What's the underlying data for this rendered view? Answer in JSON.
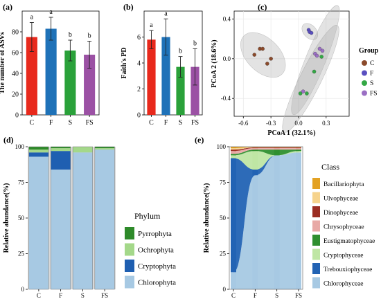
{
  "panels": {
    "a": {
      "label": "(a)"
    },
    "b": {
      "label": "(b)"
    },
    "c": {
      "label": "(c)"
    },
    "d": {
      "label": "(d)"
    },
    "e": {
      "label": "(e)"
    }
  },
  "chart_data": [
    {
      "id": "a",
      "type": "bar",
      "ylabel": "The number of ASVs",
      "categories": [
        "C",
        "F",
        "S",
        "FS"
      ],
      "values": [
        75,
        83,
        62,
        58
      ],
      "errors": [
        14,
        11,
        10,
        13
      ],
      "significance": [
        "a",
        "a",
        "b",
        "b"
      ],
      "colors": [
        "#e8291c",
        "#1f72b8",
        "#2aa13a",
        "#9b51a4"
      ],
      "ylim": [
        0,
        100
      ],
      "yticks": [
        0,
        20,
        40,
        60,
        80
      ]
    },
    {
      "id": "b",
      "type": "bar",
      "ylabel": "Faith's PD",
      "categories": [
        "C",
        "F",
        "S",
        "FS"
      ],
      "values": [
        5.8,
        6.0,
        3.7,
        3.7
      ],
      "errors": [
        0.7,
        1.4,
        0.8,
        1.4
      ],
      "significance": [
        "a",
        "a",
        "b",
        "b"
      ],
      "colors": [
        "#e8291c",
        "#1f72b8",
        "#2aa13a",
        "#9b51a4"
      ],
      "ylim": [
        0,
        8
      ],
      "yticks": [
        0,
        2,
        4,
        6
      ]
    },
    {
      "id": "c",
      "type": "scatter",
      "xlabel": "PCoA 1 (32.1%)",
      "ylabel": "PCoA 2 (18.6%)",
      "xlim": [
        -0.7,
        0.55
      ],
      "ylim": [
        -0.58,
        0.48
      ],
      "xticks": [
        -0.6,
        -0.3,
        0.0,
        0.3
      ],
      "xtick_labels": [
        "-0.6",
        "-0.3",
        "0.0",
        "0.3"
      ],
      "yticks": [
        -0.4,
        0.0,
        0.4
      ],
      "ytick_labels": [
        "-0.4",
        "0.0",
        "0.4"
      ],
      "legend_title": "Group",
      "series": [
        {
          "name": "C",
          "color": "#8b4a2b",
          "points": [
            [
              -0.48,
              0.04
            ],
            [
              -0.42,
              0.1
            ],
            [
              -0.39,
              0.1
            ],
            [
              -0.34,
              -0.05
            ],
            [
              -0.3,
              0.0
            ]
          ]
        },
        {
          "name": "F",
          "color": "#5a4fc0",
          "points": [
            [
              0.11,
              0.29
            ],
            [
              0.12,
              0.27
            ],
            [
              0.14,
              0.26
            ]
          ]
        },
        {
          "name": "S",
          "color": "#33a845",
          "points": [
            [
              0.02,
              -0.35
            ],
            [
              0.09,
              -0.35
            ],
            [
              0.17,
              -0.13
            ],
            [
              0.25,
              0.02
            ]
          ]
        },
        {
          "name": "FS",
          "color": "#9b6fc4",
          "points": [
            [
              0.05,
              -0.33
            ],
            [
              0.18,
              0.05
            ],
            [
              0.23,
              0.1
            ],
            [
              0.26,
              0.08
            ],
            [
              0.2,
              0.03
            ]
          ]
        }
      ]
    },
    {
      "id": "d",
      "type": "bar",
      "stacked": true,
      "ylabel": "Relative abundance(%)",
      "categories": [
        "C",
        "F",
        "S",
        "FS"
      ],
      "ylim": [
        0,
        100
      ],
      "yticks": [
        0,
        25,
        50,
        75,
        100
      ],
      "legend_title": "Phylum",
      "series": [
        {
          "name": "Chlorophyta",
          "color": "#a7c9e3",
          "values": [
            93,
            84,
            96,
            98
          ]
        },
        {
          "name": "Cryptophyta",
          "color": "#1f5fb1",
          "values": [
            3,
            13,
            0,
            0
          ]
        },
        {
          "name": "Ochrophyta",
          "color": "#a4d88a",
          "values": [
            2,
            2,
            4,
            1
          ]
        },
        {
          "name": "Pyrrophyta",
          "color": "#2e8a2a",
          "values": [
            2,
            1,
            0,
            1
          ]
        }
      ]
    },
    {
      "id": "e",
      "type": "area",
      "stacked": true,
      "ylabel": "Relative abundance(%)",
      "categories": [
        "C",
        "F",
        "S",
        "FS"
      ],
      "ylim": [
        0,
        100
      ],
      "yticks": [
        0,
        25,
        50,
        75,
        100
      ],
      "legend_title": "Class",
      "series": [
        {
          "name": "Chlorophyceae",
          "color": "#a7c9e3",
          "values": [
            12,
            80,
            94,
            96
          ]
        },
        {
          "name": "Trebouxiophyceae",
          "color": "#2263b4",
          "values": [
            80,
            4,
            0,
            0
          ]
        },
        {
          "name": "Cryptophyceae",
          "color": "#bfe6a4",
          "values": [
            2,
            13,
            0,
            1
          ]
        },
        {
          "name": "Eustigmatophyceae",
          "color": "#2f8f2f",
          "values": [
            1,
            1,
            4,
            1
          ]
        },
        {
          "name": "Chrysophyceae",
          "color": "#e8a9a6",
          "values": [
            2,
            1,
            1,
            1
          ]
        },
        {
          "name": "Dinophyceae",
          "color": "#9b2d22",
          "values": [
            1,
            0.5,
            0.5,
            0.5
          ]
        },
        {
          "name": "Ulvophyceae",
          "color": "#f6d38c",
          "values": [
            1,
            0.3,
            0.3,
            0.3
          ]
        },
        {
          "name": "Bacillariophyta",
          "color": "#e3a224",
          "values": [
            1,
            0.2,
            0.2,
            0.2
          ]
        }
      ]
    }
  ]
}
